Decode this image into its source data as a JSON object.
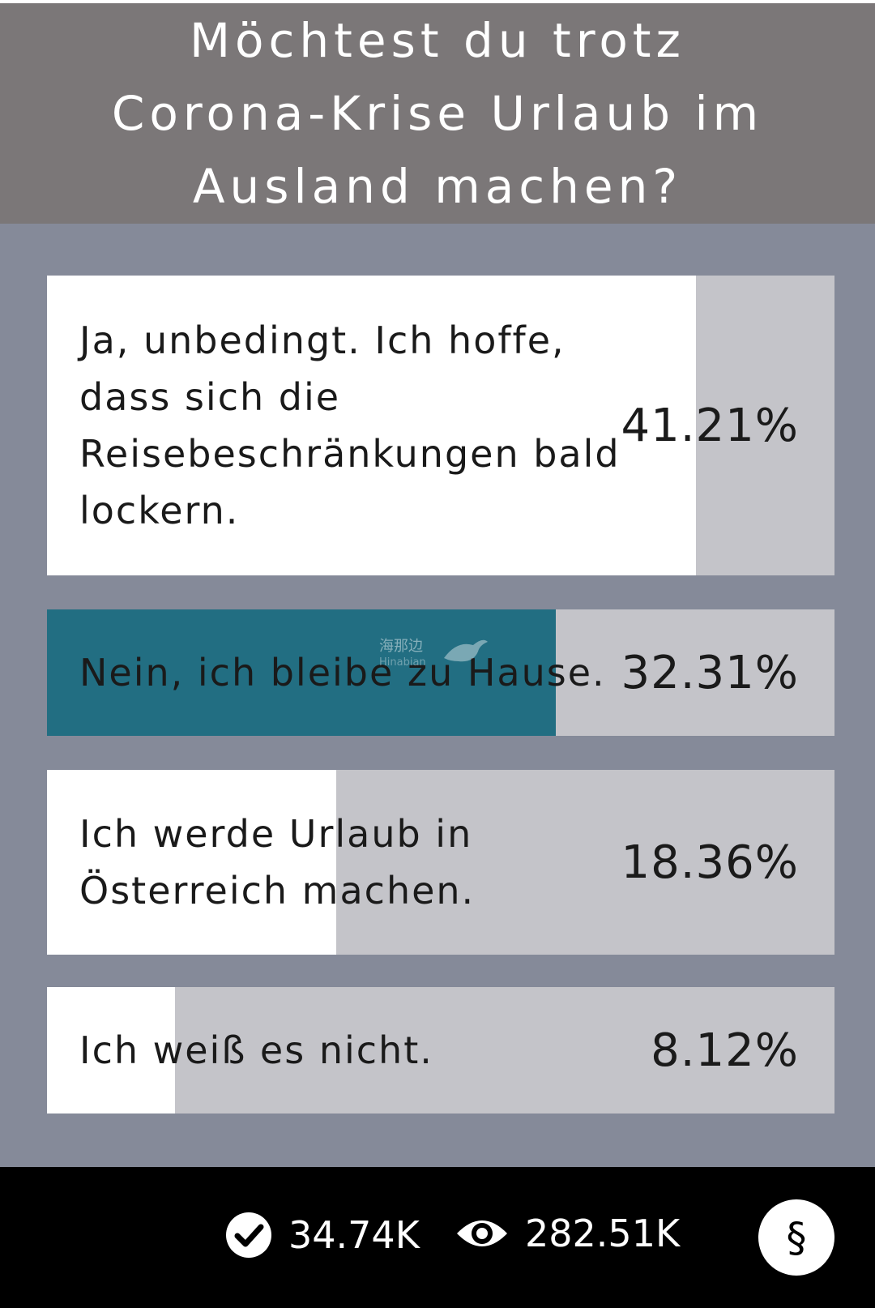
{
  "question": "Möchtest du trotz Corona-Krise Urlaub im Ausland machen?",
  "options": [
    {
      "label": "Ja, unbedingt. Ich hoffe, dass sich die Reisebeschränkungen bald lockern.",
      "percent_label": "41.21%",
      "percent": 41.21,
      "selected": false
    },
    {
      "label": "Nein, ich bleibe zu Hause.",
      "percent_label": "32.31%",
      "percent": 32.31,
      "selected": true
    },
    {
      "label": "Ich werde Urlaub in Österreich machen.",
      "percent_label": "18.36%",
      "percent": 18.36,
      "selected": false
    },
    {
      "label": "Ich weiß es nicht.",
      "percent_label": "8.12%",
      "percent": 8.12,
      "selected": false
    }
  ],
  "watermark": {
    "text": "海那边",
    "sub": "Hinabian"
  },
  "footer": {
    "votes": "34.74K",
    "views": "282.51K",
    "legal_symbol": "§",
    "votes_icon": "check-circle-icon",
    "views_icon": "eye-icon"
  },
  "colors": {
    "header_bg": "#7b7778",
    "page_bg": "#858a99",
    "track": "#c4c4c9",
    "fill": "#ffffff",
    "selected_fill": "#226e82",
    "footer_bg": "#000000"
  }
}
